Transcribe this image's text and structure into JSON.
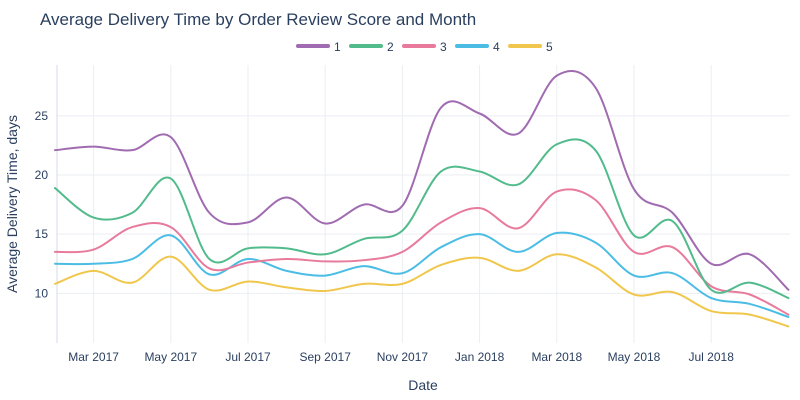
{
  "chart_data": {
    "type": "line",
    "title": "Average Delivery Time by Order Review Score and Month",
    "xlabel": "Date",
    "ylabel": "Average Delivery Time, days",
    "ylim": [
      5.8,
      29.3
    ],
    "yticks": [
      10,
      15,
      20,
      25
    ],
    "grid": true,
    "legend_position": "top-center",
    "x": [
      "2017-02",
      "2017-03",
      "2017-04",
      "2017-05",
      "2017-06",
      "2017-07",
      "2017-08",
      "2017-09",
      "2017-10",
      "2017-11",
      "2017-12",
      "2018-01",
      "2018-02",
      "2018-03",
      "2018-04",
      "2018-05",
      "2018-06",
      "2018-07",
      "2018-08",
      "2018-09"
    ],
    "xticks": [
      {
        "month": "2017-03",
        "label": "Mar 2017"
      },
      {
        "month": "2017-05",
        "label": "May 2017"
      },
      {
        "month": "2017-07",
        "label": "Jul 2017"
      },
      {
        "month": "2017-09",
        "label": "Sep 2017"
      },
      {
        "month": "2017-11",
        "label": "Nov 2017"
      },
      {
        "month": "2018-01",
        "label": "Jan 2018"
      },
      {
        "month": "2018-03",
        "label": "Mar 2018"
      },
      {
        "month": "2018-05",
        "label": "May 2018"
      },
      {
        "month": "2018-07",
        "label": "Jul 2018"
      }
    ],
    "series": [
      {
        "name": "1",
        "color": "#a06bb0",
        "values": [
          22.1,
          22.4,
          22.1,
          23.2,
          16.8,
          16.0,
          18.1,
          15.9,
          17.5,
          17.4,
          25.7,
          25.2,
          23.5,
          28.4,
          27.4,
          18.8,
          16.8,
          12.5,
          13.3,
          10.3
        ]
      },
      {
        "name": "2",
        "color": "#52bb8c",
        "values": [
          18.9,
          16.4,
          16.8,
          19.7,
          12.9,
          13.8,
          13.8,
          13.3,
          14.6,
          15.3,
          20.3,
          20.3,
          19.2,
          22.6,
          22.1,
          14.9,
          16.1,
          10.3,
          10.9,
          9.6
        ]
      },
      {
        "name": "3",
        "color": "#e87a9c",
        "values": [
          13.5,
          13.7,
          15.6,
          15.6,
          12.1,
          12.6,
          12.9,
          12.7,
          12.8,
          13.5,
          16.0,
          17.2,
          15.5,
          18.6,
          17.9,
          13.5,
          13.9,
          10.6,
          9.9,
          8.2
        ]
      },
      {
        "name": "4",
        "color": "#4bbde4",
        "values": [
          12.5,
          12.5,
          12.9,
          14.9,
          11.6,
          12.9,
          11.9,
          11.5,
          12.3,
          11.7,
          13.9,
          15.0,
          13.5,
          15.1,
          14.3,
          11.5,
          11.7,
          9.6,
          9.1,
          8.0
        ]
      },
      {
        "name": "5",
        "color": "#f0c74c",
        "values": [
          10.8,
          11.9,
          10.9,
          13.1,
          10.3,
          11.0,
          10.5,
          10.2,
          10.8,
          10.8,
          12.4,
          13.0,
          11.9,
          13.3,
          12.2,
          9.9,
          10.1,
          8.5,
          8.2,
          7.2
        ]
      }
    ]
  }
}
